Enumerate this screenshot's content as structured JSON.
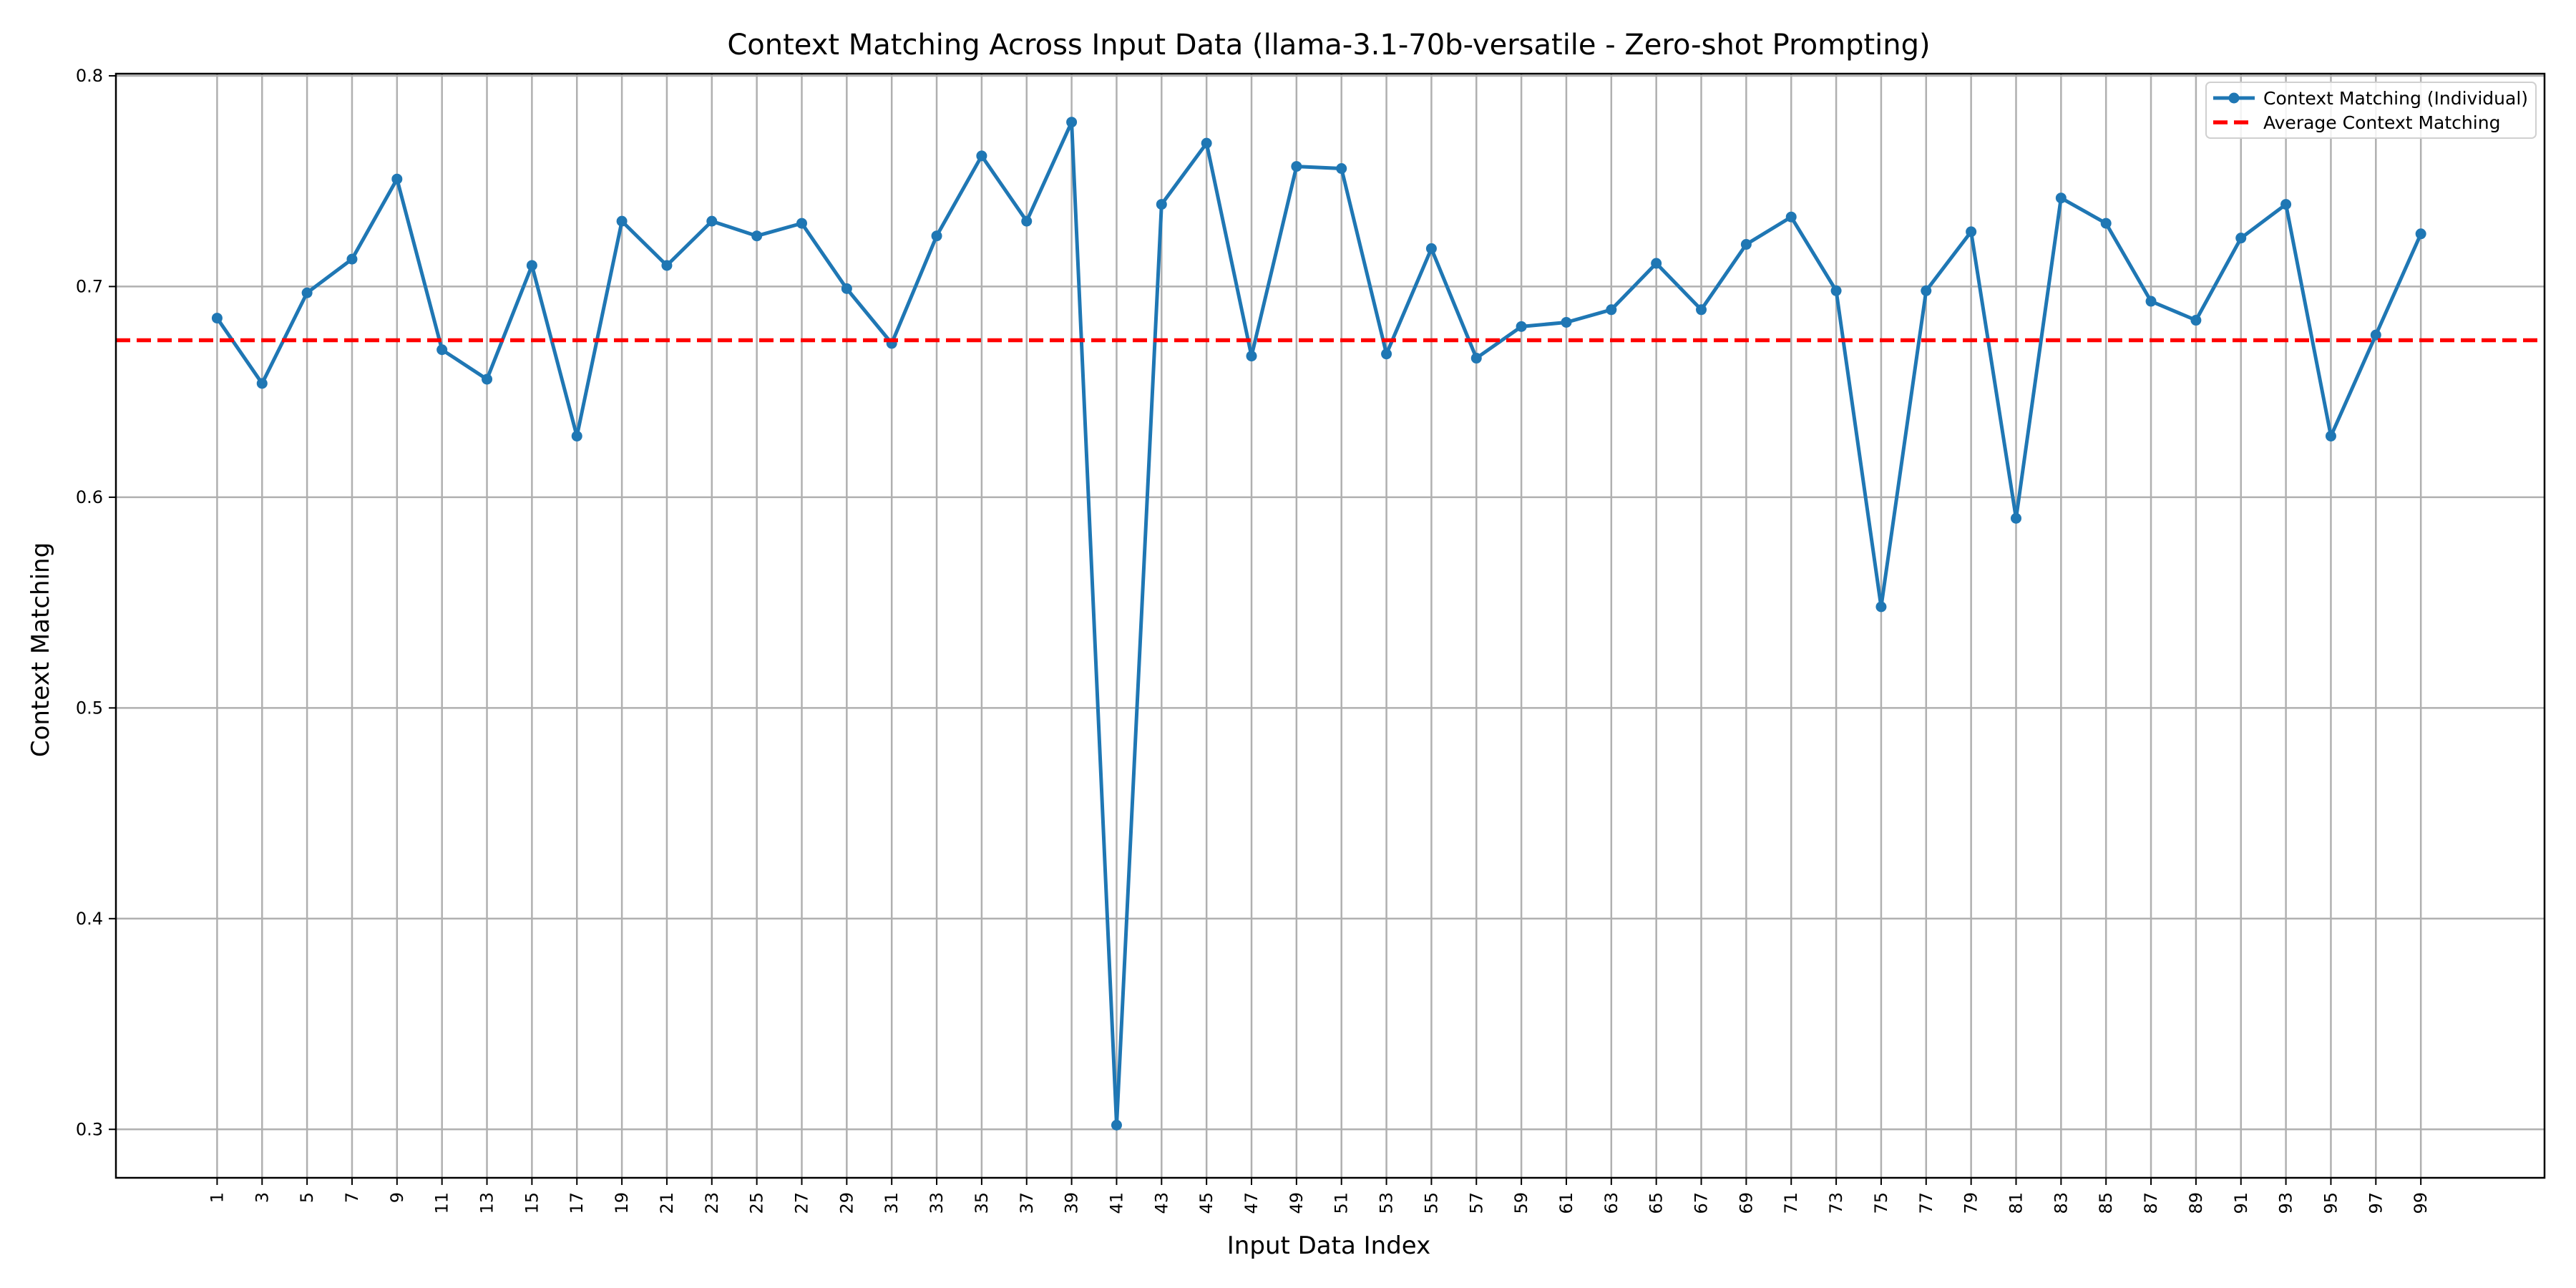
{
  "chart_data": {
    "type": "line",
    "title": "Context Matching Across Input Data (llama-3.1-70b-versatile - Zero-shot Prompting)",
    "xlabel": "Input Data Index",
    "ylabel": "Context Matching",
    "xlim": [
      -3.5,
      104.5
    ],
    "ylim": [
      0.277,
      0.801
    ],
    "x_ticks": [
      1,
      3,
      5,
      7,
      9,
      11,
      13,
      15,
      17,
      19,
      21,
      23,
      25,
      27,
      29,
      31,
      33,
      35,
      37,
      39,
      41,
      43,
      45,
      47,
      49,
      51,
      53,
      55,
      57,
      59,
      61,
      63,
      65,
      67,
      69,
      71,
      73,
      75,
      77,
      79,
      81,
      83,
      85,
      87,
      89,
      91,
      93,
      95,
      97,
      99
    ],
    "y_ticks": [
      0.3,
      0.4,
      0.5,
      0.6,
      0.7,
      0.8
    ],
    "y_tick_labels": [
      "0.3",
      "0.4",
      "0.5",
      "0.6",
      "0.7",
      "0.8"
    ],
    "grid": true,
    "legend_position": "top-right",
    "series": [
      {
        "name": "Context Matching (Individual)",
        "color": "#1f77b4",
        "style": "solid-with-markers",
        "x": [
          1,
          3,
          5,
          7,
          9,
          11,
          13,
          15,
          17,
          19,
          21,
          23,
          25,
          27,
          29,
          31,
          33,
          35,
          37,
          39,
          41,
          43,
          45,
          47,
          49,
          51,
          53,
          55,
          57,
          59,
          61,
          63,
          65,
          67,
          69,
          71,
          73,
          75,
          77,
          79,
          81,
          83,
          85,
          87,
          89,
          91,
          93,
          95,
          97,
          99
        ],
        "y": [
          0.685,
          0.654,
          0.697,
          0.713,
          0.751,
          0.67,
          0.656,
          0.71,
          0.629,
          0.731,
          0.71,
          0.731,
          0.724,
          0.73,
          0.699,
          0.673,
          0.724,
          0.762,
          0.731,
          0.778,
          0.302,
          0.739,
          0.768,
          0.667,
          0.757,
          0.756,
          0.668,
          0.718,
          0.666,
          0.681,
          0.683,
          0.689,
          0.711,
          0.689,
          0.72,
          0.733,
          0.698,
          0.548,
          0.698,
          0.726,
          0.59,
          0.742,
          0.73,
          0.693,
          0.684,
          0.723,
          0.739,
          0.629,
          0.677,
          0.725
        ]
      },
      {
        "name": "Average Context Matching",
        "color": "#ff0000",
        "style": "dashed",
        "value": 0.6745
      }
    ]
  }
}
